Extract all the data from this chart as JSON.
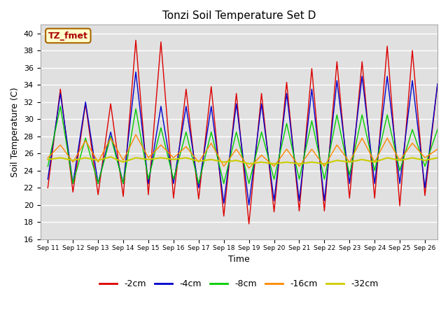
{
  "title": "Tonzi Soil Temperature Set D",
  "xlabel": "Time",
  "ylabel": "Soil Temperature (C)",
  "ylim": [
    16,
    41
  ],
  "yticks": [
    16,
    18,
    20,
    22,
    24,
    26,
    28,
    30,
    32,
    34,
    36,
    38,
    40
  ],
  "bg_color": "#e0e0e0",
  "fig_color": "#ffffff",
  "annotation_text": "TZ_fmet",
  "annotation_bg": "#ffffcc",
  "annotation_border": "#aa6600",
  "annotation_text_color": "#aa0000",
  "series": {
    "-2cm": {
      "color": "#dd0000",
      "lw": 1.0
    },
    "-4cm": {
      "color": "#0000cc",
      "lw": 1.0
    },
    "-8cm": {
      "color": "#00cc00",
      "lw": 1.0
    },
    "-16cm": {
      "color": "#ff8800",
      "lw": 1.0
    },
    "-32cm": {
      "color": "#cccc00",
      "lw": 1.5
    }
  },
  "x_tick_labels": [
    "Sep 11",
    "Sep 12",
    "Sep 13",
    "Sep 14",
    "Sep 15",
    "Sep 16",
    "Sep 17",
    "Sep 18",
    "Sep 19",
    "Sep 20",
    "Sep 21",
    "Sep 22",
    "Sep 23",
    "Sep 24",
    "Sep 25",
    "Sep 26"
  ],
  "data_2cm": [
    22.0,
    33.5,
    21.5,
    31.8,
    21.2,
    31.8,
    21.0,
    39.2,
    21.2,
    39.0,
    20.8,
    33.5,
    20.7,
    33.8,
    18.7,
    33.0,
    17.8,
    33.0,
    19.2,
    34.3,
    19.3,
    35.9,
    19.3,
    36.7,
    20.8,
    36.7,
    20.8,
    38.5,
    19.9,
    38.0,
    21.1,
    34.1
  ],
  "data_4cm": [
    23.0,
    33.0,
    22.5,
    32.0,
    22.5,
    28.5,
    22.5,
    35.5,
    22.5,
    31.5,
    22.5,
    31.5,
    22.0,
    31.5,
    20.2,
    31.8,
    20.0,
    31.8,
    20.5,
    33.0,
    20.5,
    33.5,
    20.5,
    34.5,
    22.5,
    35.0,
    22.5,
    35.0,
    22.5,
    34.5,
    22.0,
    34.1
  ],
  "data_8cm": [
    24.5,
    31.5,
    22.5,
    27.8,
    22.5,
    28.0,
    22.5,
    31.2,
    23.0,
    29.0,
    23.0,
    28.5,
    22.5,
    28.5,
    22.5,
    28.5,
    22.5,
    28.5,
    23.0,
    29.5,
    23.0,
    29.8,
    23.0,
    30.5,
    23.5,
    30.5,
    24.0,
    30.5,
    24.0,
    28.8,
    24.5,
    28.8
  ],
  "data_16cm": [
    25.5,
    27.0,
    25.0,
    27.5,
    25.0,
    27.8,
    25.2,
    28.2,
    25.5,
    27.0,
    25.5,
    26.8,
    25.0,
    27.2,
    24.5,
    26.5,
    24.3,
    25.8,
    24.5,
    26.5,
    24.5,
    26.5,
    24.5,
    27.0,
    25.0,
    27.8,
    25.0,
    27.8,
    25.2,
    27.2,
    25.5,
    26.5
  ],
  "data_32cm": [
    25.3,
    25.5,
    25.2,
    25.5,
    25.2,
    25.6,
    25.0,
    25.5,
    25.3,
    25.5,
    25.3,
    25.5,
    25.1,
    25.3,
    25.0,
    25.2,
    24.8,
    25.0,
    24.8,
    25.0,
    24.8,
    25.0,
    24.8,
    25.2,
    25.0,
    25.3,
    25.0,
    25.5,
    25.2,
    25.5,
    25.2,
    25.5
  ]
}
